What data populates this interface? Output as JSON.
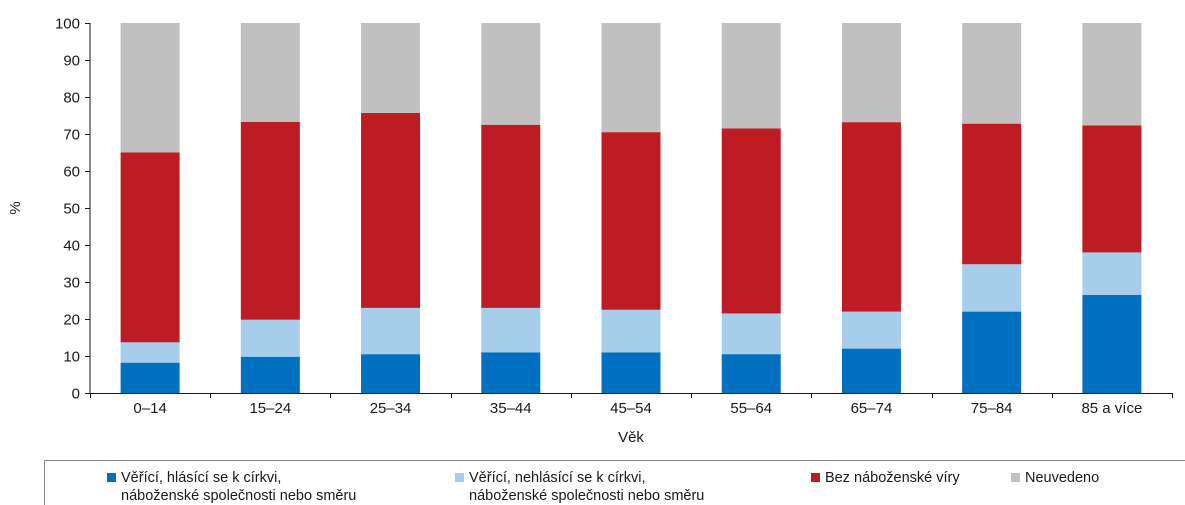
{
  "chart_data": {
    "type": "bar",
    "stacked": true,
    "title": "",
    "xlabel": "Věk",
    "ylabel": "%",
    "ylim": [
      0,
      100
    ],
    "yticks": [
      "0",
      "10",
      "20",
      "30",
      "40",
      "50",
      "60",
      "70",
      "80",
      "90",
      "100"
    ],
    "categories": [
      "0–14",
      "15–24",
      "25–34",
      "35–44",
      "45–54",
      "55–64",
      "65–74",
      "75–84",
      "85 a více"
    ],
    "series": [
      {
        "name": "Věřící, hlásící se k církvi,\nnáboženské společnosti nebo směru",
        "color": "#0070c0",
        "values": [
          8.2,
          9.8,
          10.5,
          11.0,
          11.0,
          10.5,
          12.0,
          22.0,
          26.5
        ]
      },
      {
        "name": "Věřící, nehlásící se k církvi,\nnáboženské společnosti nebo směru",
        "color": "#a6cde9",
        "values": [
          5.5,
          10.0,
          12.5,
          12.0,
          11.5,
          11.0,
          10.0,
          12.8,
          11.5
        ]
      },
      {
        "name": "Bez náboženské víry",
        "color": "#be1c24",
        "values": [
          51.3,
          53.5,
          52.7,
          49.5,
          48.0,
          50.0,
          51.2,
          38.0,
          34.3
        ]
      },
      {
        "name": "Neuvedeno",
        "color": "#c0c0c0",
        "values": [
          35.0,
          26.7,
          24.3,
          27.5,
          29.5,
          28.5,
          26.8,
          27.2,
          27.7
        ]
      }
    ],
    "legend_position": "bottom",
    "grid": false
  }
}
